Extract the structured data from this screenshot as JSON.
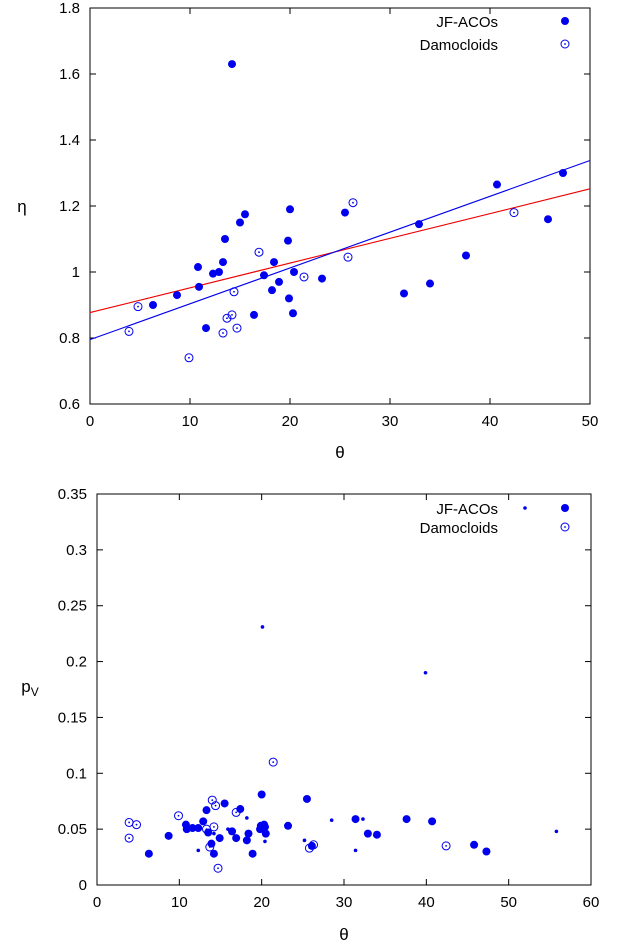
{
  "chart_data": [
    {
      "type": "scatter",
      "title": "",
      "xlabel": "θ",
      "ylabel": "η",
      "xlim": [
        0,
        50
      ],
      "ylim": [
        0.6,
        1.8
      ],
      "xticks": [
        0,
        10,
        20,
        30,
        40,
        50
      ],
      "xtick_labels": [
        "0",
        "10",
        "20",
        "30",
        "40",
        "50"
      ],
      "yticks": [
        0.6,
        0.8,
        1,
        1.2,
        1.4,
        1.6,
        1.8
      ],
      "ytick_labels": [
        "0.6",
        "0.8",
        "1",
        "1.2",
        "1.4",
        "1.6",
        "1.8"
      ],
      "legend_position": "top-right",
      "grid": false,
      "series": [
        {
          "name": "JF-ACOs",
          "marker": "filled-circle",
          "color": "#0000ee",
          "points": [
            [
              6.3,
              0.9
            ],
            [
              8.7,
              0.93
            ],
            [
              10.8,
              1.015
            ],
            [
              10.9,
              0.955
            ],
            [
              11.6,
              0.83
            ],
            [
              12.3,
              0.995
            ],
            [
              12.9,
              1.0
            ],
            [
              13.3,
              1.03
            ],
            [
              13.5,
              1.1
            ],
            [
              14.2,
              1.63
            ],
            [
              15.0,
              1.15
            ],
            [
              15.5,
              1.175
            ],
            [
              16.4,
              0.87
            ],
            [
              17.4,
              0.99
            ],
            [
              18.2,
              0.945
            ],
            [
              18.4,
              1.03
            ],
            [
              18.9,
              0.97
            ],
            [
              19.8,
              1.095
            ],
            [
              19.9,
              0.92
            ],
            [
              20.0,
              1.19
            ],
            [
              20.3,
              0.875
            ],
            [
              20.4,
              1.0
            ],
            [
              23.2,
              0.98
            ],
            [
              25.5,
              1.18
            ],
            [
              31.4,
              0.935
            ],
            [
              32.9,
              1.145
            ],
            [
              34.0,
              0.965
            ],
            [
              37.6,
              1.05
            ],
            [
              40.7,
              1.265
            ],
            [
              45.8,
              1.16
            ],
            [
              47.3,
              1.3
            ]
          ]
        },
        {
          "name": "Damocloids",
          "marker": "open-circle",
          "color": "#0000ee",
          "points": [
            [
              3.9,
              0.82
            ],
            [
              4.8,
              0.895
            ],
            [
              9.9,
              0.74
            ],
            [
              13.3,
              0.815
            ],
            [
              13.7,
              0.86
            ],
            [
              14.2,
              0.87
            ],
            [
              14.4,
              0.94
            ],
            [
              14.7,
              0.83
            ],
            [
              16.9,
              1.06
            ],
            [
              21.4,
              0.985
            ],
            [
              25.8,
              1.045
            ],
            [
              26.3,
              1.21
            ],
            [
              42.4,
              1.18
            ]
          ]
        }
      ],
      "fit_lines": [
        {
          "color": "#ee0000",
          "x": [
            0,
            50
          ],
          "y": [
            0.877,
            1.252
          ]
        },
        {
          "color": "#0000ee",
          "x": [
            0,
            50
          ],
          "y": [
            0.795,
            1.338
          ]
        }
      ]
    },
    {
      "type": "scatter",
      "title": "",
      "xlabel": "θ",
      "ylabel": "p_V",
      "xlim": [
        0,
        60
      ],
      "ylim": [
        0,
        0.35
      ],
      "xticks": [
        0,
        10,
        20,
        30,
        40,
        50,
        60
      ],
      "xtick_labels": [
        "0",
        "10",
        "20",
        "30",
        "40",
        "50",
        "60"
      ],
      "yticks": [
        0,
        0.05,
        0.1,
        0.15,
        0.2,
        0.25,
        0.3,
        0.35
      ],
      "ytick_labels": [
        "0",
        "0.05",
        "0.1",
        "0.15",
        "0.2",
        "0.25",
        "0.3",
        "0.35"
      ],
      "legend_position": "top-right",
      "grid": false,
      "series": [
        {
          "name": "JF-ACOs",
          "marker": "filled-circle-small",
          "color": "#0000ee",
          "points": [
            [
              12.3,
              0.031
            ],
            [
              14.2,
              0.046
            ],
            [
              15.9,
              0.05
            ],
            [
              18.2,
              0.06
            ],
            [
              20.1,
              0.231
            ],
            [
              20.4,
              0.039
            ],
            [
              25.2,
              0.04
            ],
            [
              28.5,
              0.058
            ],
            [
              31.4,
              0.031
            ],
            [
              32.3,
              0.059
            ],
            [
              39.9,
              0.19
            ],
            [
              55.8,
              0.048
            ]
          ]
        },
        {
          "name": "",
          "marker": "filled-circle",
          "color": "#0000ee",
          "points": [
            [
              6.3,
              0.028
            ],
            [
              8.7,
              0.044
            ],
            [
              10.8,
              0.054
            ],
            [
              10.9,
              0.05
            ],
            [
              11.6,
              0.051
            ],
            [
              12.3,
              0.051
            ],
            [
              12.9,
              0.057
            ],
            [
              13.3,
              0.067
            ],
            [
              13.5,
              0.047
            ],
            [
              13.9,
              0.037
            ],
            [
              14.2,
              0.028
            ],
            [
              14.9,
              0.042
            ],
            [
              15.5,
              0.073
            ],
            [
              16.4,
              0.048
            ],
            [
              16.9,
              0.042
            ],
            [
              17.4,
              0.068
            ],
            [
              18.2,
              0.04
            ],
            [
              18.4,
              0.046
            ],
            [
              18.9,
              0.028
            ],
            [
              19.8,
              0.05
            ],
            [
              19.9,
              0.053
            ],
            [
              20.0,
              0.081
            ],
            [
              20.3,
              0.054
            ],
            [
              20.4,
              0.052
            ],
            [
              20.5,
              0.046
            ],
            [
              23.2,
              0.053
            ],
            [
              25.5,
              0.077
            ],
            [
              26.1,
              0.035
            ],
            [
              31.4,
              0.059
            ],
            [
              32.9,
              0.046
            ],
            [
              34.0,
              0.045
            ],
            [
              37.6,
              0.059
            ],
            [
              40.7,
              0.057
            ],
            [
              45.8,
              0.036
            ],
            [
              47.3,
              0.03
            ]
          ]
        },
        {
          "name": "Damocloids",
          "marker": "open-circle",
          "color": "#0000ee",
          "points": [
            [
              3.9,
              0.056
            ],
            [
              3.9,
              0.042
            ],
            [
              4.8,
              0.054
            ],
            [
              9.9,
              0.062
            ],
            [
              13.3,
              0.05
            ],
            [
              13.7,
              0.034
            ],
            [
              14.0,
              0.076
            ],
            [
              14.2,
              0.052
            ],
            [
              14.4,
              0.071
            ],
            [
              14.7,
              0.015
            ],
            [
              16.9,
              0.065
            ],
            [
              21.4,
              0.11
            ],
            [
              25.8,
              0.033
            ],
            [
              26.3,
              0.036
            ],
            [
              42.4,
              0.035
            ]
          ]
        }
      ]
    }
  ]
}
